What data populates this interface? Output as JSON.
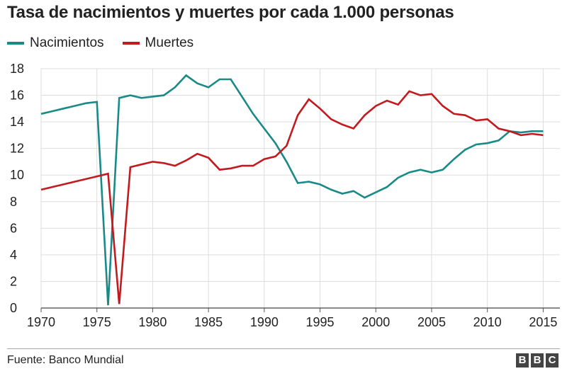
{
  "chart_data": {
    "type": "line",
    "title": "Tasa de nacimientos y muertes por cada 1.000 personas",
    "xlabel": "",
    "ylabel": "",
    "xlim": [
      1970,
      2016.5
    ],
    "ylim": [
      0,
      18
    ],
    "x_ticks": [
      1970,
      1975,
      1980,
      1985,
      1990,
      1995,
      2000,
      2005,
      2010,
      2015
    ],
    "y_ticks": [
      0,
      2,
      4,
      6,
      8,
      10,
      12,
      14,
      16,
      18
    ],
    "grid": true,
    "legend_position": "top-left",
    "series": [
      {
        "name": "Nacimientos",
        "color": "#1a8a87",
        "points": [
          [
            1970,
            14.6
          ],
          [
            1971,
            14.8
          ],
          [
            1972,
            15.0
          ],
          [
            1973,
            15.2
          ],
          [
            1974,
            15.4
          ],
          [
            1975,
            15.5
          ],
          [
            1976,
            0.2
          ],
          [
            1977,
            15.8
          ],
          [
            1978,
            16.0
          ],
          [
            1979,
            15.8
          ],
          [
            1980,
            15.9
          ],
          [
            1981,
            16.0
          ],
          [
            1982,
            16.6
          ],
          [
            1983,
            17.5
          ],
          [
            1984,
            16.9
          ],
          [
            1985,
            16.6
          ],
          [
            1986,
            17.2
          ],
          [
            1987,
            17.2
          ],
          [
            1988,
            15.9
          ],
          [
            1989,
            14.6
          ],
          [
            1990,
            13.5
          ],
          [
            1991,
            12.4
          ],
          [
            1992,
            11.0
          ],
          [
            1993,
            9.4
          ],
          [
            1994,
            9.5
          ],
          [
            1995,
            9.3
          ],
          [
            1996,
            8.9
          ],
          [
            1997,
            8.6
          ],
          [
            1998,
            8.8
          ],
          [
            1999,
            8.3
          ],
          [
            2000,
            8.7
          ],
          [
            2001,
            9.1
          ],
          [
            2002,
            9.8
          ],
          [
            2003,
            10.2
          ],
          [
            2004,
            10.4
          ],
          [
            2005,
            10.2
          ],
          [
            2006,
            10.4
          ],
          [
            2007,
            11.2
          ],
          [
            2008,
            11.9
          ],
          [
            2009,
            12.3
          ],
          [
            2010,
            12.4
          ],
          [
            2011,
            12.6
          ],
          [
            2012,
            13.3
          ],
          [
            2013,
            13.2
          ],
          [
            2014,
            13.3
          ],
          [
            2015,
            13.3
          ]
        ]
      },
      {
        "name": "Muertes",
        "color": "#c31a1f",
        "points": [
          [
            1970,
            8.9
          ],
          [
            1971,
            9.1
          ],
          [
            1972,
            9.3
          ],
          [
            1973,
            9.5
          ],
          [
            1974,
            9.7
          ],
          [
            1975,
            9.9
          ],
          [
            1976,
            10.1
          ],
          [
            1977,
            0.3
          ],
          [
            1978,
            10.6
          ],
          [
            1979,
            10.8
          ],
          [
            1980,
            11.0
          ],
          [
            1981,
            10.9
          ],
          [
            1982,
            10.7
          ],
          [
            1983,
            11.1
          ],
          [
            1984,
            11.6
          ],
          [
            1985,
            11.3
          ],
          [
            1986,
            10.4
          ],
          [
            1987,
            10.5
          ],
          [
            1988,
            10.7
          ],
          [
            1989,
            10.7
          ],
          [
            1990,
            11.2
          ],
          [
            1991,
            11.4
          ],
          [
            1992,
            12.2
          ],
          [
            1993,
            14.5
          ],
          [
            1994,
            15.7
          ],
          [
            1995,
            15.0
          ],
          [
            1996,
            14.2
          ],
          [
            1997,
            13.8
          ],
          [
            1998,
            13.5
          ],
          [
            1999,
            14.5
          ],
          [
            2000,
            15.2
          ],
          [
            2001,
            15.6
          ],
          [
            2002,
            15.3
          ],
          [
            2003,
            16.3
          ],
          [
            2004,
            16.0
          ],
          [
            2005,
            16.1
          ],
          [
            2006,
            15.2
          ],
          [
            2007,
            14.6
          ],
          [
            2008,
            14.5
          ],
          [
            2009,
            14.1
          ],
          [
            2010,
            14.2
          ],
          [
            2011,
            13.5
          ],
          [
            2012,
            13.3
          ],
          [
            2013,
            13.0
          ],
          [
            2014,
            13.1
          ],
          [
            2015,
            13.0
          ]
        ]
      }
    ]
  },
  "legend": {
    "items": [
      {
        "label": "Nacimientos",
        "color": "#1a8a87"
      },
      {
        "label": "Muertes",
        "color": "#c31a1f"
      }
    ]
  },
  "footer": {
    "source": "Fuente: Banco Mundial",
    "logo_letters": [
      "B",
      "B",
      "C"
    ]
  }
}
